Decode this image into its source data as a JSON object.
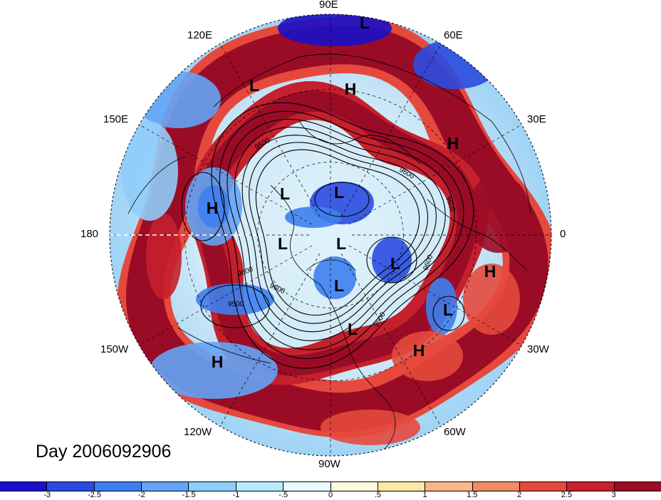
{
  "map": {
    "longitude_labels": [
      "90E",
      "60E",
      "30E",
      "0",
      "30W",
      "60W",
      "90W",
      "120W",
      "150W",
      "180",
      "150E",
      "120E"
    ],
    "pressure_system_markers": [
      {
        "symbol": "L",
        "place": "north Asia (~100E)"
      },
      {
        "symbol": "L",
        "place": "central Siberia"
      },
      {
        "symbol": "H",
        "place": "northern Siberia"
      },
      {
        "symbol": "H",
        "place": "western Siberia / Ural"
      },
      {
        "symbol": "H",
        "place": "central North Pacific"
      },
      {
        "symbol": "L",
        "place": "Arctic Ocean"
      },
      {
        "symbol": "L",
        "place": "Chukchi / Alaska sector"
      },
      {
        "symbol": "L",
        "place": "Canadian Arctic"
      },
      {
        "symbol": "L",
        "place": "Greenland"
      },
      {
        "symbol": "L",
        "place": "Baffin Island"
      },
      {
        "symbol": "L",
        "place": "Hudson Bay"
      },
      {
        "symbol": "L",
        "place": "Labrador Sea"
      },
      {
        "symbol": "H",
        "place": "Mediterranean / North Africa"
      },
      {
        "symbol": "L",
        "place": "western Europe"
      },
      {
        "symbol": "H",
        "place": "central North Atlantic"
      },
      {
        "symbol": "H",
        "place": "eastern North Pacific"
      }
    ],
    "contour_labels": [
      "9600",
      "9600",
      "9600",
      "9600",
      "9600",
      "9500",
      "9500",
      "9600"
    ],
    "shading_palette": [
      "#1a10c8",
      "#2a4be0",
      "#3e7ff0",
      "#64a4f5",
      "#8fcdfa",
      "#b8ecfc",
      "#e8fbff",
      "#fffbe0",
      "#fde7a8",
      "#f7b78a",
      "#ef8c66",
      "#e5493d",
      "#c4202d",
      "#9a0c26"
    ]
  },
  "title": "Day 2006092906",
  "colorbar": {
    "ticks": [
      "-3",
      "-2.5",
      "-2",
      "-1.5",
      "-1",
      "-.5",
      "0",
      ".5",
      "1",
      "1.5",
      "2",
      "2.5",
      "3"
    ],
    "colors": [
      "#1a10c8",
      "#2a4be0",
      "#3e7ff0",
      "#64a4f5",
      "#8fcdfa",
      "#b8ecfc",
      "#e8fbff",
      "#fffbe0",
      "#fde7a8",
      "#f7b78a",
      "#ef8c66",
      "#e5493d",
      "#c4202d",
      "#9a0c26"
    ]
  }
}
